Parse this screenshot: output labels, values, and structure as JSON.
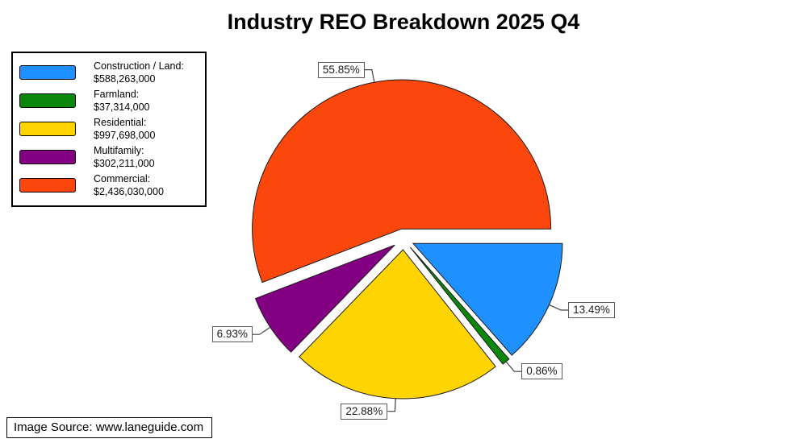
{
  "title": "Industry REO Breakdown 2025 Q4",
  "source": {
    "text": "Image Source: www.laneguide.com"
  },
  "chart_data": {
    "type": "pie",
    "title": "Industry REO Breakdown 2025 Q4",
    "legend_position": "top-left",
    "start_angle_deg": 0,
    "direction": "clockwise",
    "slices": [
      {
        "slug": "construction-land",
        "label": "Construction / Land:",
        "value": 588263000,
        "value_text": "$588,263,000",
        "percent": 13.49,
        "percent_text": "13.49%",
        "color": "#1E90FF"
      },
      {
        "slug": "farmland",
        "label": "Farmland:",
        "value": 37314000,
        "value_text": "$37,314,000",
        "percent": 0.86,
        "percent_text": "0.86%",
        "color": "#0B870B"
      },
      {
        "slug": "residential",
        "label": "Residential:",
        "value": 997698000,
        "value_text": "$997,698,000",
        "percent": 22.88,
        "percent_text": "22.88%",
        "color": "#FFD400"
      },
      {
        "slug": "multifamily",
        "label": "Multifamily:",
        "value": 302211000,
        "value_text": "$302,211,000",
        "percent": 6.93,
        "percent_text": "6.93%",
        "color": "#830083"
      },
      {
        "slug": "commercial",
        "label": "Commercial:",
        "value": 2436030000,
        "value_text": "$2,436,030,000",
        "percent": 55.85,
        "percent_text": "55.85%",
        "color": "#FB470C"
      }
    ]
  }
}
